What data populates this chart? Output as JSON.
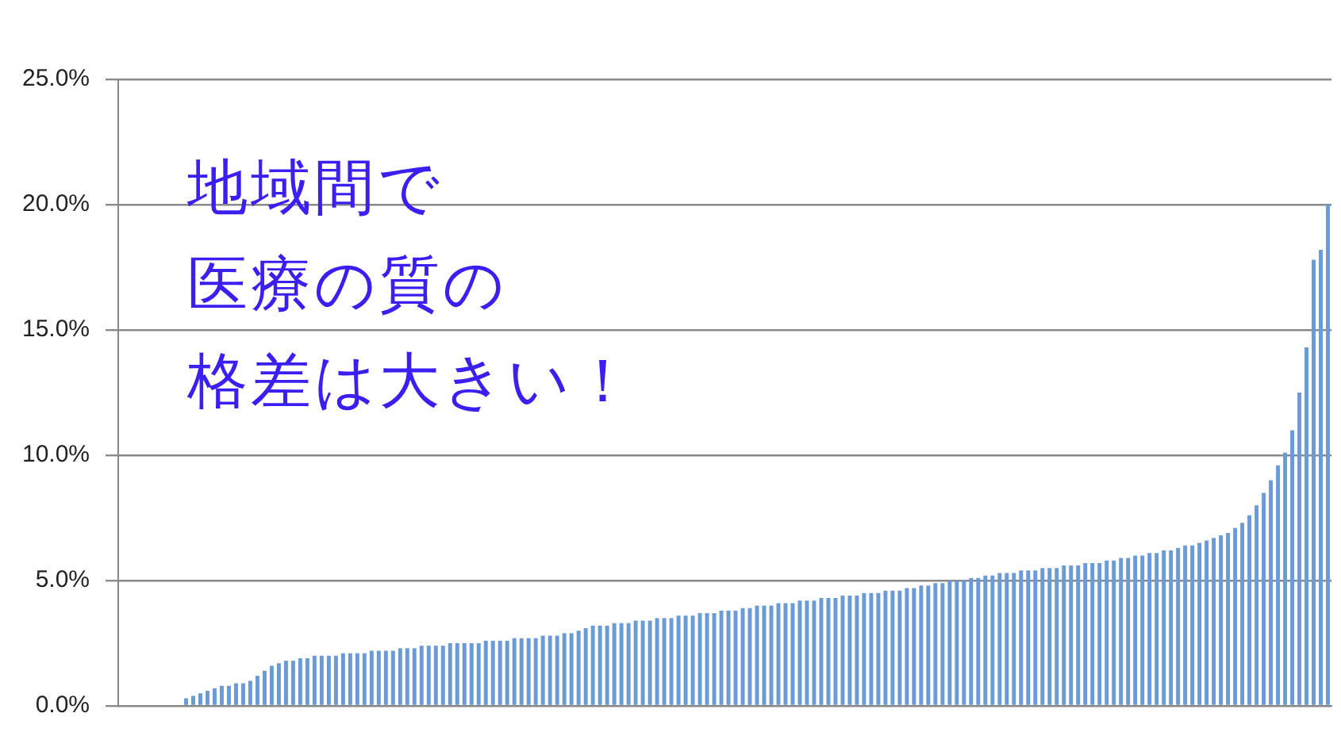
{
  "chart_data": {
    "type": "bar",
    "categories": [
      null,
      null,
      null,
      null,
      null,
      null,
      null,
      null,
      null,
      null,
      null,
      null,
      null,
      null,
      null,
      null,
      null,
      null,
      null,
      null,
      null,
      null,
      null,
      null,
      null,
      null,
      null,
      null,
      null,
      null,
      null,
      null,
      null,
      null,
      null,
      null,
      null,
      null,
      null,
      null,
      null,
      null,
      null,
      null,
      null,
      null,
      null,
      null,
      null,
      null,
      null,
      null,
      null,
      null,
      null,
      null,
      null,
      null,
      null,
      null,
      null,
      null,
      null,
      null,
      null,
      null,
      null,
      null,
      null,
      null,
      null,
      null,
      null,
      null,
      null,
      null,
      null,
      null,
      null,
      null,
      null,
      null,
      null,
      null,
      null,
      null,
      null,
      null,
      null,
      null,
      null,
      null,
      null,
      null,
      null,
      null,
      null,
      null,
      null,
      null,
      null,
      null,
      null,
      null,
      null,
      null,
      null,
      null,
      null,
      null,
      null,
      null,
      null,
      null,
      null,
      null,
      null,
      null,
      null,
      null,
      null,
      null,
      null,
      null,
      null,
      null,
      null,
      null,
      null,
      null,
      null,
      null,
      null,
      null,
      null,
      null,
      null,
      null,
      null,
      null,
      null,
      null,
      null,
      null,
      null,
      null,
      null,
      null,
      null,
      null,
      null,
      null,
      null,
      null,
      null,
      null,
      null,
      null,
      null,
      null,
      null,
      null,
      null,
      null,
      null,
      null,
      null,
      null,
      null,
      null
    ],
    "values": [
      null,
      null,
      null,
      null,
      null,
      null,
      null,
      null,
      null,
      0.3,
      0.4,
      0.5,
      0.6,
      0.7,
      0.8,
      0.8,
      0.9,
      0.9,
      1.0,
      1.2,
      1.4,
      1.6,
      1.7,
      1.8,
      1.8,
      1.9,
      1.9,
      2.0,
      2.0,
      2.0,
      2.0,
      2.1,
      2.1,
      2.1,
      2.1,
      2.2,
      2.2,
      2.2,
      2.2,
      2.3,
      2.3,
      2.3,
      2.4,
      2.4,
      2.4,
      2.4,
      2.5,
      2.5,
      2.5,
      2.5,
      2.5,
      2.6,
      2.6,
      2.6,
      2.6,
      2.7,
      2.7,
      2.7,
      2.7,
      2.8,
      2.8,
      2.8,
      2.9,
      2.9,
      3.0,
      3.1,
      3.2,
      3.2,
      3.2,
      3.3,
      3.3,
      3.3,
      3.4,
      3.4,
      3.4,
      3.5,
      3.5,
      3.5,
      3.6,
      3.6,
      3.6,
      3.7,
      3.7,
      3.7,
      3.8,
      3.8,
      3.8,
      3.9,
      3.9,
      4.0,
      4.0,
      4.0,
      4.1,
      4.1,
      4.1,
      4.2,
      4.2,
      4.2,
      4.3,
      4.3,
      4.3,
      4.4,
      4.4,
      4.4,
      4.5,
      4.5,
      4.5,
      4.6,
      4.6,
      4.6,
      4.7,
      4.7,
      4.8,
      4.8,
      4.9,
      4.9,
      5.0,
      5.0,
      5.0,
      5.1,
      5.1,
      5.2,
      5.2,
      5.3,
      5.3,
      5.3,
      5.4,
      5.4,
      5.4,
      5.5,
      5.5,
      5.5,
      5.6,
      5.6,
      5.6,
      5.7,
      5.7,
      5.7,
      5.8,
      5.8,
      5.9,
      5.9,
      6.0,
      6.0,
      6.1,
      6.1,
      6.2,
      6.2,
      6.3,
      6.4,
      6.4,
      6.5,
      6.6,
      6.7,
      6.8,
      6.9,
      7.1,
      7.3,
      7.6,
      8.0,
      8.5,
      9.0,
      9.6,
      10.1,
      11.0,
      12.5,
      14.3,
      17.8,
      18.2,
      20.0
    ],
    "color": "#6b9bd6",
    "ylim": [
      0,
      25
    ],
    "yticks": [
      {
        "value": 0,
        "label": "0.0%"
      },
      {
        "value": 5,
        "label": "5.0%"
      },
      {
        "value": 10,
        "label": "10.0%"
      },
      {
        "value": 15,
        "label": "15.0%"
      },
      {
        "value": 20,
        "label": "20.0%"
      },
      {
        "value": 25,
        "label": "25.0%"
      }
    ],
    "grid": "y",
    "annotations": [
      "地域間で",
      "医療の質の",
      "格差は大きい！"
    ]
  }
}
